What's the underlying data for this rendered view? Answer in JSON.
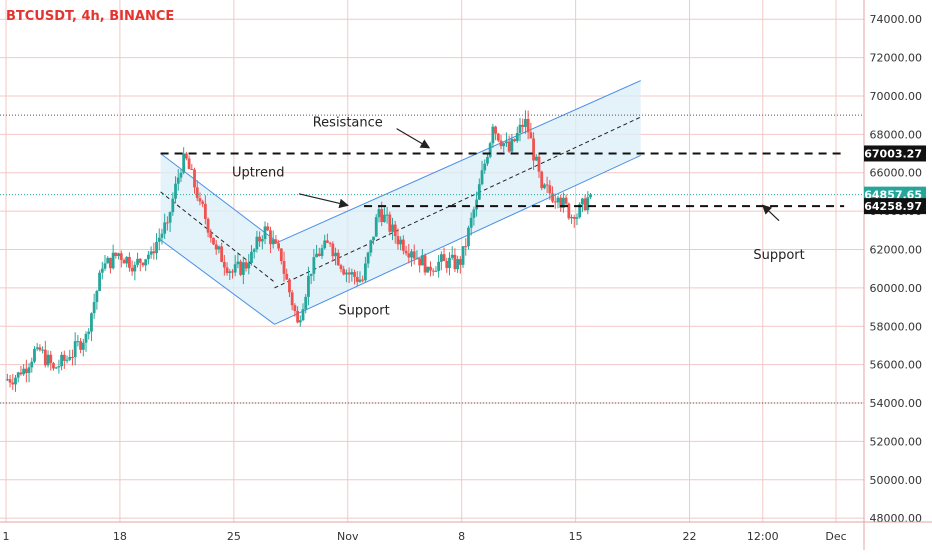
{
  "header": {
    "symbol_title": "BTCUSDT, 4h, BINANCE"
  },
  "colors": {
    "up": "#26a69a",
    "down": "#ef5350",
    "grid": "#f4c7c7",
    "channel_line": "#4a8fe7",
    "channel_fill": "#dbeef8",
    "dashed": "#111111",
    "axis_text": "#333333",
    "label_bg_dark": "#111111",
    "label_bg_green": "#26a69a"
  },
  "chart_data": {
    "type": "candlestick",
    "title": "BTCUSDT, 4h, BINANCE",
    "y_range": [
      47800,
      75000
    ],
    "y_ticks": [
      48000,
      50000,
      52000,
      54000,
      56000,
      58000,
      60000,
      62000,
      64000,
      66000,
      68000,
      70000,
      72000,
      74000
    ],
    "y_tick_labels": [
      "48000.00",
      "50000.00",
      "52000.00",
      "54000.00",
      "56000.00",
      "58000.00",
      "60000.00",
      "62000.00",
      "64000.00",
      "66000.00",
      "68000.00",
      "70000.00",
      "72000.00",
      "74000.00"
    ],
    "x_range": [
      "2024-10-11",
      "2024-12-01"
    ],
    "x_ticks": [
      {
        "date": "2024-10-11",
        "label": "1"
      },
      {
        "date": "2024-10-18",
        "label": "18"
      },
      {
        "date": "2024-10-25",
        "label": "25"
      },
      {
        "date": "2024-11-01",
        "label": "Nov"
      },
      {
        "date": "2024-11-08",
        "label": "8"
      },
      {
        "date": "2024-11-15",
        "label": "15"
      },
      {
        "date": "2024-11-22",
        "label": "22"
      },
      {
        "date": "2024-11-26T12:00",
        "label": "12:00"
      },
      {
        "date": "2024-12-01",
        "label": "Dec"
      }
    ],
    "price_labels": [
      {
        "value": 67003.27,
        "text": "67003.27",
        "style": "dark"
      },
      {
        "value": 64857.65,
        "text": "64857.65",
        "style": "green"
      },
      {
        "value": 64258.97,
        "text": "64258.97",
        "style": "dark"
      }
    ],
    "horizontal_levels": [
      {
        "value": 67003.27,
        "from": "2024-10-20T12:00",
        "to": "2024-12-01T12:00"
      },
      {
        "value": 64258.97,
        "from": "2024-11-02",
        "to": "2024-12-01T12:00"
      }
    ],
    "dotted_levels": [
      54000,
      69000
    ],
    "channels": [
      {
        "upper": [
          [
            "2024-10-20T12:00",
            67000
          ],
          [
            "2024-10-27T12:00",
            62500
          ]
        ],
        "lower": [
          [
            "2024-10-20T12:00",
            62500
          ],
          [
            "2024-10-27T12:00",
            58100
          ]
        ],
        "mid": [
          [
            "2024-10-20T12:00",
            65000
          ],
          [
            "2024-10-27T12:00",
            60300
          ]
        ]
      },
      {
        "upper": [
          [
            "2024-10-27T12:00",
            62300
          ],
          [
            "2024-11-19",
            70800
          ]
        ],
        "lower": [
          [
            "2024-10-27T12:00",
            58100
          ],
          [
            "2024-11-19",
            66900
          ]
        ],
        "mid": [
          [
            "2024-10-27T12:00",
            60000
          ],
          [
            "2024-11-19",
            68900
          ]
        ]
      }
    ],
    "annotations": [
      {
        "text": "Resistance",
        "x": "2024-11-01",
        "y": 68400
      },
      {
        "text": "Uptrend",
        "x": "2024-10-26T12:00",
        "y": 65800
      },
      {
        "text": "Support",
        "x": "2024-11-02",
        "y": 58600
      },
      {
        "text": "Support",
        "x": "2024-11-27T12:00",
        "y": 61500
      }
    ],
    "arrows": [
      {
        "from": [
          "2024-11-04",
          68300
        ],
        "to": [
          "2024-11-06",
          67300
        ]
      },
      {
        "from": [
          "2024-10-29",
          64900
        ],
        "to": [
          "2024-11-01",
          64300
        ]
      },
      {
        "from": [
          "2024-11-27T12:00",
          63500
        ],
        "to": [
          "2024-11-26T12:00",
          64300
        ]
      }
    ],
    "candles_daily_close": [
      {
        "date": "2024-10-11",
        "c": 55500
      },
      {
        "date": "2024-10-12",
        "c": 56900
      },
      {
        "date": "2024-10-13",
        "c": 55800
      },
      {
        "date": "2024-10-14",
        "c": 56400
      },
      {
        "date": "2024-10-15",
        "c": 57600
      },
      {
        "date": "2024-10-16",
        "c": 61000
      },
      {
        "date": "2024-10-17",
        "c": 61800
      },
      {
        "date": "2024-10-18",
        "c": 61200
      },
      {
        "date": "2024-10-19",
        "c": 61900
      },
      {
        "date": "2024-10-20",
        "c": 63400
      },
      {
        "date": "2024-10-21",
        "c": 67000
      },
      {
        "date": "2024-10-22",
        "c": 64500
      },
      {
        "date": "2024-10-23",
        "c": 62000
      },
      {
        "date": "2024-10-24",
        "c": 60800
      },
      {
        "date": "2024-10-25",
        "c": 61300
      },
      {
        "date": "2024-10-26",
        "c": 63200
      },
      {
        "date": "2024-10-27",
        "c": 61400
      },
      {
        "date": "2024-10-28",
        "c": 58200
      },
      {
        "date": "2024-10-29",
        "c": 61600
      },
      {
        "date": "2024-10-30",
        "c": 62300
      },
      {
        "date": "2024-10-31",
        "c": 60800
      },
      {
        "date": "2024-11-01",
        "c": 60400
      },
      {
        "date": "2024-11-02",
        "c": 64100
      },
      {
        "date": "2024-11-03",
        "c": 62700
      },
      {
        "date": "2024-11-04",
        "c": 61900
      },
      {
        "date": "2024-11-05",
        "c": 61100
      },
      {
        "date": "2024-11-06",
        "c": 61400
      },
      {
        "date": "2024-11-07",
        "c": 61200
      },
      {
        "date": "2024-11-08",
        "c": 64600
      },
      {
        "date": "2024-11-09",
        "c": 68400
      },
      {
        "date": "2024-11-10",
        "c": 67100
      },
      {
        "date": "2024-11-11",
        "c": 68800
      },
      {
        "date": "2024-11-12",
        "c": 65200
      },
      {
        "date": "2024-11-13",
        "c": 64700
      },
      {
        "date": "2024-11-14",
        "c": 63600
      },
      {
        "date": "2024-11-15",
        "c": 64860
      }
    ]
  }
}
